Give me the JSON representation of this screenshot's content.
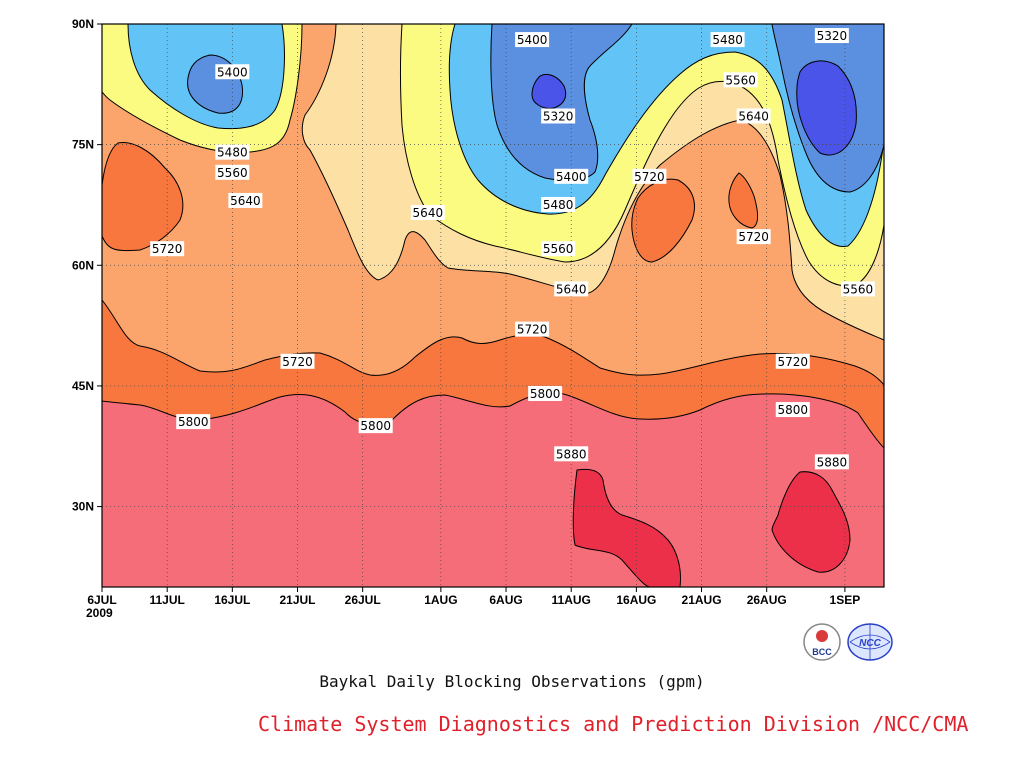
{
  "chart_data": {
    "type": "heatmap",
    "subtitle": "Baykal Daily Blocking Observations (gpm)",
    "credit": "Climate System Diagnostics and Prediction Division /NCC/CMA",
    "x_ticks": [
      "6JUL",
      "11JUL",
      "16JUL",
      "21JUL",
      "26JUL",
      "1AUG",
      "6AUG",
      "11AUG",
      "16AUG",
      "21AUG",
      "26AUG",
      "1SEP"
    ],
    "x_year_label": "2009",
    "xlim": [
      "2009-07-06",
      "2009-09-04"
    ],
    "y_ticks": [
      "90N",
      "75N",
      "60N",
      "45N",
      "30N"
    ],
    "ylim": [
      20,
      90
    ],
    "contour_levels": [
      5320,
      5400,
      5480,
      5560,
      5640,
      5720,
      5800,
      5880
    ],
    "fill_colors": {
      "below_5320": "#4a54e8",
      "5320_5400": "#5b8fe0",
      "5400_5480": "#62c4f6",
      "5480_5560": "#fbfb82",
      "5560_5640": "#fce0a4",
      "5640_5720": "#fba56c",
      "5720_5800": "#f7773f",
      "5800_5880": "#f46d78",
      "above_5880": "#ec3049"
    },
    "contour_labels": [
      {
        "text": "5400",
        "date": "2009-07-16",
        "lat": 84
      },
      {
        "text": "5480",
        "date": "2009-07-16",
        "lat": 74
      },
      {
        "text": "5560",
        "date": "2009-07-16",
        "lat": 71.5
      },
      {
        "text": "5640",
        "date": "2009-07-17",
        "lat": 68
      },
      {
        "text": "5720",
        "date": "2009-07-11",
        "lat": 62
      },
      {
        "text": "5720",
        "date": "2009-07-21",
        "lat": 48
      },
      {
        "text": "5800",
        "date": "2009-07-13",
        "lat": 40.5
      },
      {
        "text": "5800",
        "date": "2009-07-27",
        "lat": 40
      },
      {
        "text": "5640",
        "date": "2009-07-31",
        "lat": 66.5
      },
      {
        "text": "5400",
        "date": "2009-08-08",
        "lat": 88
      },
      {
        "text": "5320",
        "date": "2009-08-10",
        "lat": 78.5
      },
      {
        "text": "5400",
        "date": "2009-08-11",
        "lat": 71
      },
      {
        "text": "5480",
        "date": "2009-08-10",
        "lat": 67.5
      },
      {
        "text": "5560",
        "date": "2009-08-10",
        "lat": 62
      },
      {
        "text": "5640",
        "date": "2009-08-11",
        "lat": 57
      },
      {
        "text": "5720",
        "date": "2009-08-08",
        "lat": 52
      },
      {
        "text": "5800",
        "date": "2009-08-09",
        "lat": 44
      },
      {
        "text": "5880",
        "date": "2009-08-11",
        "lat": 36.5
      },
      {
        "text": "5720",
        "date": "2009-08-17",
        "lat": 71
      },
      {
        "text": "5480",
        "date": "2009-08-23",
        "lat": 88
      },
      {
        "text": "5560",
        "date": "2009-08-24",
        "lat": 83
      },
      {
        "text": "5640",
        "date": "2009-08-25",
        "lat": 78.5
      },
      {
        "text": "5720",
        "date": "2009-08-25",
        "lat": 63.5
      },
      {
        "text": "5720",
        "date": "2009-08-28",
        "lat": 48
      },
      {
        "text": "5800",
        "date": "2009-08-28",
        "lat": 42
      },
      {
        "text": "5320",
        "date": "2009-08-31",
        "lat": 88.5
      },
      {
        "text": "5560",
        "date": "2009-09-02",
        "lat": 57
      },
      {
        "text": "5880",
        "date": "2009-08-31",
        "lat": 35.5
      }
    ]
  },
  "logos": {
    "bcc": "BCC",
    "ncc": "NCC"
  }
}
